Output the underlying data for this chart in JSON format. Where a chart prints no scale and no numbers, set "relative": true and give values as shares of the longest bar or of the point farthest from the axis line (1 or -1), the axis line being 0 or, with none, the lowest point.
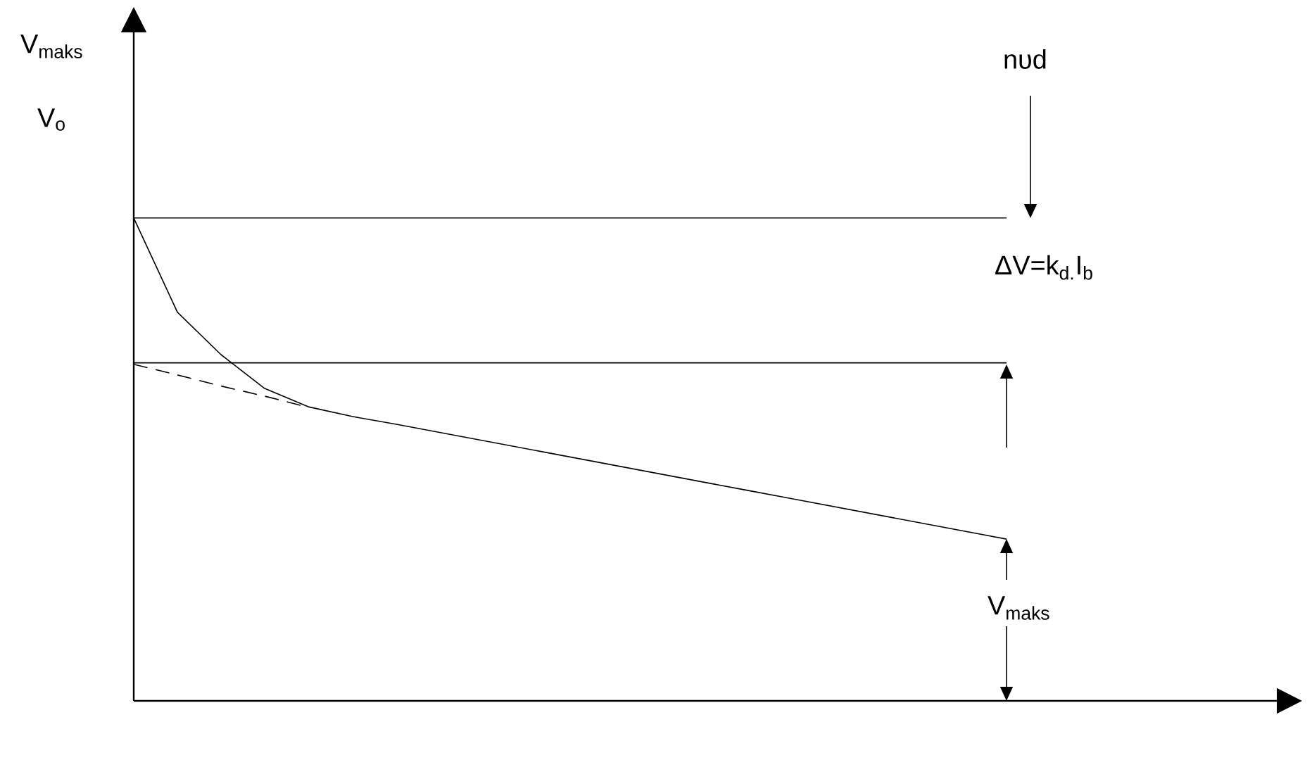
{
  "chart_data": {
    "type": "line",
    "relative": true,
    "annotations": [
      "V$_{maks}$",
      "V$_{o}$",
      "nυd",
      "ΔV=k$_{d.}$I$_{b}$",
      "V$_{maks}$"
    ],
    "categories": [
      null,
      null,
      null,
      null,
      null,
      null,
      null,
      null,
      null,
      null,
      null,
      null,
      null,
      null,
      null,
      null,
      null,
      null,
      null,
      null,
      null
    ],
    "marker": "none",
    "series": [
      {
        "color": "#000000",
        "line_style": "solid",
        "values": [
          1.0,
          0.805,
          0.717,
          0.647,
          0.609,
          0.589,
          0.573,
          0.556,
          0.539,
          0.522,
          0.505,
          0.488,
          0.471,
          0.454,
          0.437,
          0.42,
          0.403,
          0.386,
          0.369,
          0.352,
          0.335
        ]
      },
      {
        "color": "#000000",
        "line_style": "dashed",
        "values": [
          0.697,
          0.675,
          0.652,
          0.631,
          0.608,
          null,
          null,
          null,
          null,
          null,
          null,
          null,
          null,
          null,
          null,
          null,
          null,
          null,
          null,
          null,
          null
        ]
      },
      {
        "color": "#000000",
        "line_style": "solid",
        "values": [
          1.0,
          1.0,
          1.0,
          1.0,
          1.0,
          1.0,
          1.0,
          1.0,
          1.0,
          1.0,
          1.0,
          1.0,
          1.0,
          1.0,
          1.0,
          1.0,
          1.0,
          1.0,
          1.0,
          1.0,
          1.0
        ]
      },
      {
        "color": "#000000",
        "line_style": "solid",
        "values": [
          0.7,
          0.7,
          0.7,
          0.7,
          0.7,
          0.7,
          0.7,
          0.7,
          0.7,
          0.7,
          0.7,
          0.7,
          0.7,
          0.7,
          0.7,
          0.7,
          0.7,
          0.7,
          0.7,
          0.7,
          0.7
        ]
      }
    ]
  }
}
